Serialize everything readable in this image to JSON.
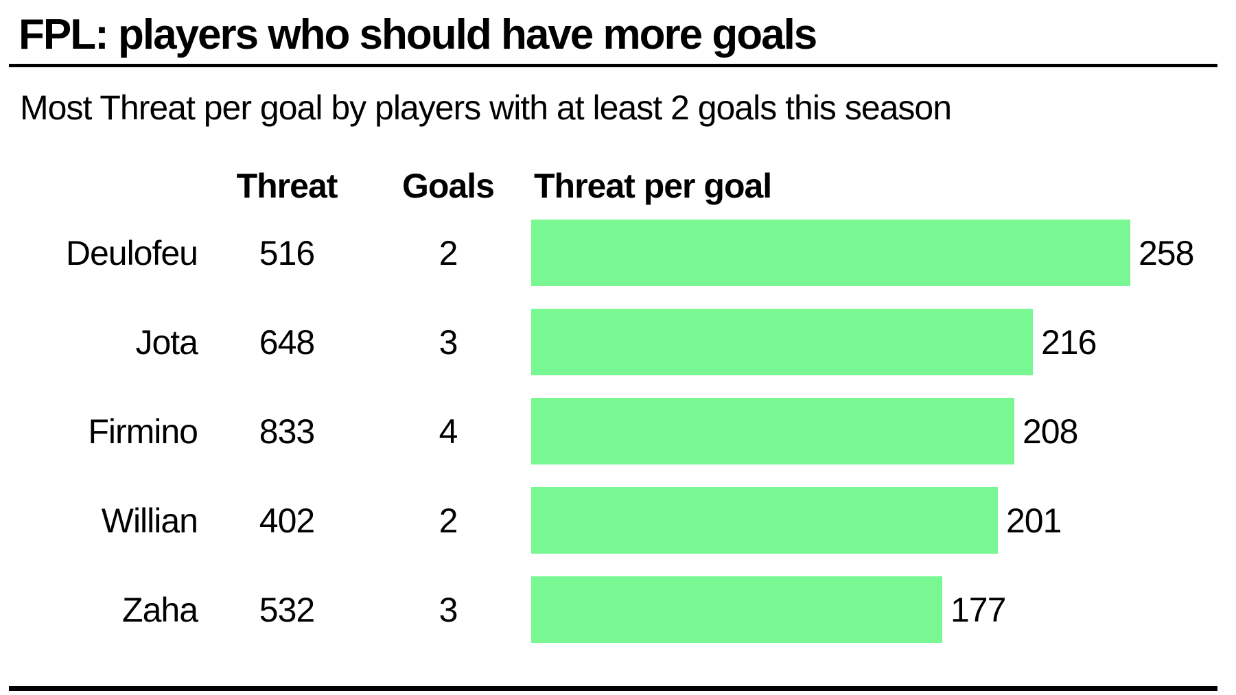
{
  "chart_data": {
    "type": "bar",
    "orientation": "horizontal",
    "title": "FPL: players who should have more goals",
    "subtitle": "Most Threat per goal by players with at least 2 goals this season",
    "columns": [
      "Threat",
      "Goals",
      "Threat per goal"
    ],
    "categories": [
      "Deulofeu",
      "Jota",
      "Firmino",
      "Willian",
      "Zaha"
    ],
    "series": [
      {
        "name": "Threat",
        "values": [
          516,
          648,
          833,
          402,
          532
        ]
      },
      {
        "name": "Goals",
        "values": [
          2,
          3,
          4,
          2,
          3
        ]
      },
      {
        "name": "Threat per goal",
        "values": [
          258,
          216,
          208,
          201,
          177
        ]
      }
    ],
    "rows": [
      {
        "player": "Deulofeu",
        "threat": "516",
        "goals": "2",
        "threat_per_goal": "258"
      },
      {
        "player": "Jota",
        "threat": "648",
        "goals": "3",
        "threat_per_goal": "216"
      },
      {
        "player": "Firmino",
        "threat": "833",
        "goals": "4",
        "threat_per_goal": "208"
      },
      {
        "player": "Willian",
        "threat": "402",
        "goals": "2",
        "threat_per_goal": "201"
      },
      {
        "player": "Zaha",
        "threat": "532",
        "goals": "3",
        "threat_per_goal": "177"
      }
    ],
    "bar_value_series": "Threat per goal",
    "xlim": [
      0,
      258
    ],
    "grid": false,
    "legend": false,
    "bar_color": "#79F792",
    "text_color": "#000000",
    "background_color": "#FFFFFF",
    "rule_color": "#000000"
  }
}
